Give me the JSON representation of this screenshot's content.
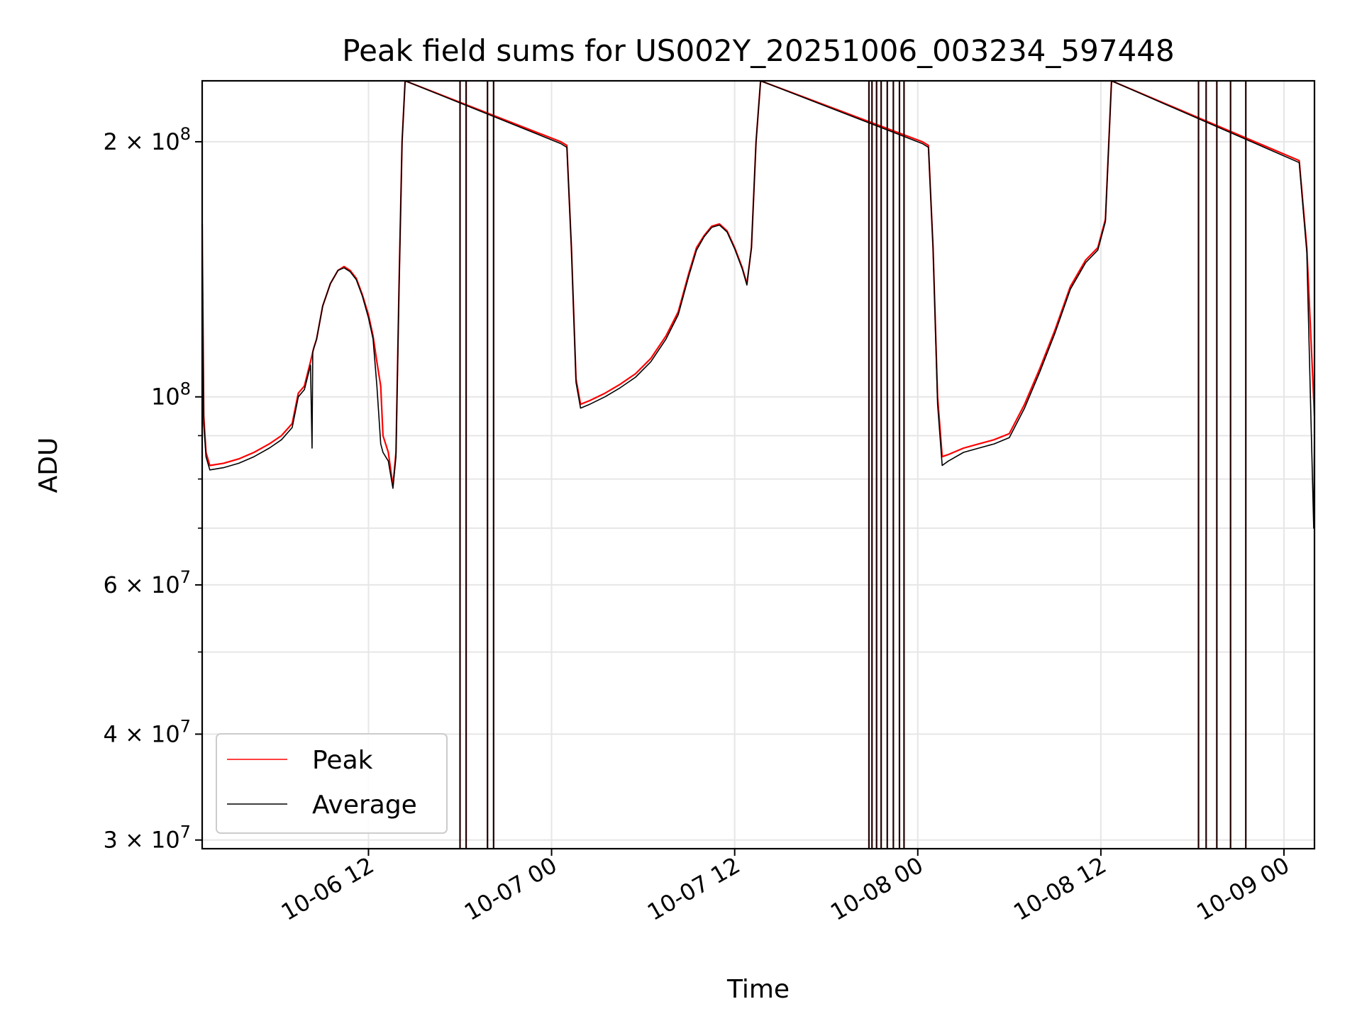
{
  "chart_data": {
    "type": "line",
    "title": "Peak field sums for US002Y_20251006_003234_597448",
    "xlabel": "Time",
    "ylabel": "ADU",
    "yscale": "log",
    "grid": true,
    "legend_position": "lower-left",
    "x_unit": "hours since 10-06 00:00",
    "xlim": [
      1.1,
      74.0
    ],
    "ylim": [
      29300000,
      236000000
    ],
    "x_ticks": [
      {
        "value": 12,
        "label": "10-06 12"
      },
      {
        "value": 24,
        "label": "10-07 00"
      },
      {
        "value": 36,
        "label": "10-07 12"
      },
      {
        "value": 48,
        "label": "10-08 00"
      },
      {
        "value": 60,
        "label": "10-08 12"
      },
      {
        "value": 72,
        "label": "10-09 00"
      }
    ],
    "y_major_ticks": [
      {
        "value": 30000000,
        "mant": "3",
        "exp": "7"
      },
      {
        "value": 40000000,
        "mant": "4",
        "exp": "7"
      },
      {
        "value": 60000000,
        "mant": "6",
        "exp": "7"
      },
      {
        "value": 100000000,
        "mant": "",
        "exp": "8"
      },
      {
        "value": 200000000,
        "mant": "2",
        "exp": "8"
      }
    ],
    "y_minor_ticks": [
      50000000,
      70000000,
      80000000,
      90000000
    ],
    "times_sign": "×",
    "tick_base": "10",
    "series": [
      {
        "name": "Peak",
        "color": "#ff0000",
        "points": [
          [
            1.1,
            160000000
          ],
          [
            1.2,
            95000000
          ],
          [
            1.35,
            86000000
          ],
          [
            1.6,
            83000000
          ],
          [
            2.5,
            83500000
          ],
          [
            3.5,
            84500000
          ],
          [
            4.5,
            86000000
          ],
          [
            5.5,
            88000000
          ],
          [
            6.3,
            90000000
          ],
          [
            7.0,
            93000000
          ],
          [
            7.4,
            101000000
          ],
          [
            7.8,
            103000000
          ],
          [
            8.2,
            110000000
          ],
          [
            8.4,
            114000000
          ],
          [
            8.6,
            117000000
          ],
          [
            9.0,
            128000000
          ],
          [
            9.5,
            136000000
          ],
          [
            10.0,
            141000000
          ],
          [
            10.4,
            142500000
          ],
          [
            10.8,
            141000000
          ],
          [
            11.2,
            138000000
          ],
          [
            11.6,
            132000000
          ],
          [
            12.0,
            125000000
          ],
          [
            12.3,
            118000000
          ],
          [
            12.55,
            110000000
          ],
          [
            12.8,
            103000000
          ],
          [
            12.95,
            90000000
          ],
          [
            13.3,
            86000000
          ],
          [
            13.6,
            78500000
          ],
          [
            13.8,
            86000000
          ],
          [
            14.0,
            135000000
          ],
          [
            14.2,
            200000000
          ],
          [
            14.4,
            236000000
          ],
          [
            24.6,
            200000000
          ],
          [
            25.0,
            198000000
          ],
          [
            25.3,
            150000000
          ],
          [
            25.6,
            105000000
          ],
          [
            25.9,
            98000000
          ],
          [
            26.5,
            99000000
          ],
          [
            27.5,
            101000000
          ],
          [
            28.5,
            103500000
          ],
          [
            29.5,
            106500000
          ],
          [
            30.5,
            111000000
          ],
          [
            31.5,
            118000000
          ],
          [
            32.3,
            126000000
          ],
          [
            33.0,
            140000000
          ],
          [
            33.5,
            150000000
          ],
          [
            34.0,
            155000000
          ],
          [
            34.5,
            159000000
          ],
          [
            35.0,
            160000000
          ],
          [
            35.5,
            157000000
          ],
          [
            36.0,
            150000000
          ],
          [
            36.5,
            142000000
          ],
          [
            36.8,
            136000000
          ],
          [
            37.1,
            150000000
          ],
          [
            37.4,
            200000000
          ],
          [
            37.7,
            236000000
          ],
          [
            48.3,
            200000000
          ],
          [
            48.7,
            198000000
          ],
          [
            49.0,
            150000000
          ],
          [
            49.3,
            100000000
          ],
          [
            49.6,
            85000000
          ],
          [
            50.0,
            85500000
          ],
          [
            51.0,
            87000000
          ],
          [
            52.0,
            88000000
          ],
          [
            53.0,
            89000000
          ],
          [
            54.0,
            90500000
          ],
          [
            55.0,
            98000000
          ],
          [
            56.0,
            108000000
          ],
          [
            57.0,
            120000000
          ],
          [
            58.0,
            135000000
          ],
          [
            59.0,
            145000000
          ],
          [
            59.8,
            150000000
          ],
          [
            60.3,
            162000000
          ],
          [
            60.7,
            236000000
          ],
          [
            73.0,
            190000000
          ],
          [
            73.5,
            150000000
          ],
          [
            74.0,
            95000000
          ]
        ]
      },
      {
        "name": "Average",
        "color": "#000000",
        "points": [
          [
            1.1,
            155000000
          ],
          [
            1.2,
            93000000
          ],
          [
            1.35,
            85000000
          ],
          [
            1.6,
            82000000
          ],
          [
            2.5,
            82500000
          ],
          [
            3.5,
            83500000
          ],
          [
            4.5,
            85000000
          ],
          [
            5.5,
            87000000
          ],
          [
            6.3,
            89000000
          ],
          [
            7.0,
            92000000
          ],
          [
            7.4,
            100000000
          ],
          [
            7.8,
            102000000
          ],
          [
            8.2,
            109000000
          ],
          [
            8.3,
            87000000
          ],
          [
            8.35,
            113000000
          ],
          [
            8.6,
            117000000
          ],
          [
            9.0,
            128000000
          ],
          [
            9.5,
            136000000
          ],
          [
            10.0,
            141000000
          ],
          [
            10.4,
            142000000
          ],
          [
            10.8,
            140500000
          ],
          [
            11.2,
            137500000
          ],
          [
            11.6,
            131500000
          ],
          [
            12.0,
            124000000
          ],
          [
            12.3,
            117000000
          ],
          [
            12.55,
            103000000
          ],
          [
            12.8,
            88000000
          ],
          [
            12.95,
            86000000
          ],
          [
            13.3,
            84000000
          ],
          [
            13.6,
            78000000
          ],
          [
            13.8,
            85000000
          ],
          [
            14.0,
            134000000
          ],
          [
            14.2,
            200000000
          ],
          [
            14.4,
            236000000
          ],
          [
            24.6,
            199000000
          ],
          [
            25.0,
            197000000
          ],
          [
            25.3,
            150000000
          ],
          [
            25.6,
            104000000
          ],
          [
            25.9,
            97000000
          ],
          [
            26.5,
            98000000
          ],
          [
            27.5,
            100000000
          ],
          [
            28.5,
            102500000
          ],
          [
            29.5,
            105500000
          ],
          [
            30.5,
            110000000
          ],
          [
            31.5,
            117000000
          ],
          [
            32.3,
            125000000
          ],
          [
            33.0,
            139000000
          ],
          [
            33.5,
            149000000
          ],
          [
            34.0,
            154500000
          ],
          [
            34.5,
            158500000
          ],
          [
            35.0,
            159500000
          ],
          [
            35.5,
            156500000
          ],
          [
            36.0,
            149500000
          ],
          [
            36.5,
            141500000
          ],
          [
            36.8,
            135500000
          ],
          [
            37.1,
            150000000
          ],
          [
            37.4,
            200000000
          ],
          [
            37.7,
            236000000
          ],
          [
            48.3,
            199000000
          ],
          [
            48.7,
            197000000
          ],
          [
            49.0,
            150000000
          ],
          [
            49.3,
            98000000
          ],
          [
            49.6,
            83000000
          ],
          [
            50.0,
            84000000
          ],
          [
            51.0,
            86000000
          ],
          [
            52.0,
            87000000
          ],
          [
            53.0,
            88000000
          ],
          [
            54.0,
            89500000
          ],
          [
            55.0,
            97000000
          ],
          [
            56.0,
            107000000
          ],
          [
            57.0,
            119000000
          ],
          [
            58.0,
            134000000
          ],
          [
            59.0,
            144000000
          ],
          [
            59.8,
            149000000
          ],
          [
            60.3,
            161000000
          ],
          [
            60.7,
            236000000
          ],
          [
            73.0,
            189000000
          ],
          [
            73.5,
            148000000
          ],
          [
            73.95,
            70000000
          ],
          [
            74.0,
            94000000
          ]
        ]
      }
    ],
    "gap_spikes_hours": [
      18.0,
      18.4,
      19.8,
      20.2,
      44.8,
      45.0,
      45.3,
      45.6,
      46.0,
      46.4,
      46.8,
      47.1,
      66.4,
      66.9,
      67.6,
      68.5,
      69.5
    ]
  }
}
